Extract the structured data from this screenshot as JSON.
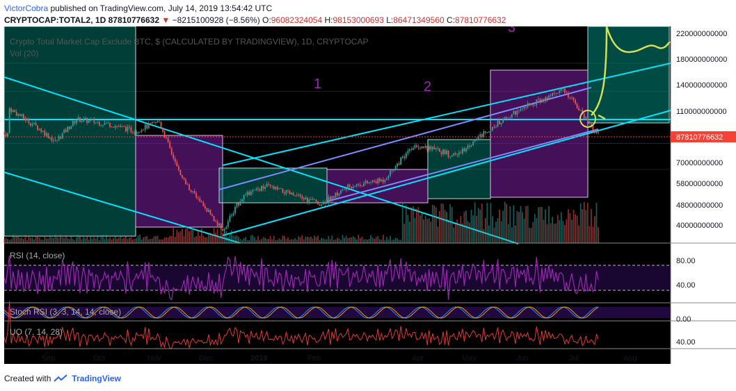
{
  "header": {
    "author": "VictorCobra",
    "published_text": "published on TradingView.com, July 14, 2019 13:54:42 UTC",
    "symbol": "CRYPTOCAP:TOTAL2, 1D",
    "last": "87810776632",
    "change": "−8215100928 (−8.56%)",
    "o_label": "O:",
    "o_value": "96082324054",
    "h_label": "H:",
    "h_value": "98153000693",
    "l_label": "L:",
    "l_value": "86471349560",
    "c_label": "C:",
    "c_value": "87810776632"
  },
  "chart_title": "Crypto Total Market Cap Exclude BTC, $ (CALCULATED BY TRADINGVIEW), 1D, CRYPTOCAP",
  "vol_label": "Vol (20)",
  "rsi_label": "RSI (14, close)",
  "stoch_label": "Stoch RSI (3, 3, 14, 14, close)",
  "uo_label": "UO (7, 14, 28)",
  "wave_labels": [
    "1",
    "2",
    "3"
  ],
  "price_axis": [
    "220000000000",
    "180000000000",
    "140000000000",
    "110000000000",
    "87810776632",
    "70000000000",
    "58000000000",
    "48000000000",
    "40000000000"
  ],
  "rsi_axis": [
    "80.00",
    "40.00"
  ],
  "stoch_axis": [
    "0.00"
  ],
  "uo_axis": [
    "40.00"
  ],
  "x_axis": [
    "Sep",
    "Oct",
    "Nov",
    "Dec",
    "2019",
    "Feb",
    "Apr",
    "May",
    "Jun",
    "Jul",
    "Aug"
  ],
  "footer": {
    "created_with": "Created with",
    "brand": "TradingView"
  },
  "colors": {
    "bg": "#000000",
    "up": "#26a69a",
    "down": "#ef5350",
    "price_label": "#f44336",
    "teal_box": "#00897b",
    "purple_box": "#7b1fa2",
    "channel": "#00e5ff",
    "rsi": "#9c27b0",
    "uo": "#e53935",
    "annot": "#d4e157"
  },
  "chart_data": {
    "type": "candlestick",
    "title": "Crypto Total Market Cap Exclude BTC, $ (CALCULATED BY TRADINGVIEW), 1D, CRYPTOCAP",
    "x_months": [
      "Sep",
      "Oct",
      "Nov",
      "Dec",
      "2019",
      "Feb",
      "Apr",
      "May",
      "Jun",
      "Jul",
      "Aug"
    ],
    "close_series_approx": [
      {
        "date": "2018-08-15",
        "close": 110000000000
      },
      {
        "date": "2018-09-01",
        "close": 92000000000
      },
      {
        "date": "2018-09-10",
        "close": 82000000000
      },
      {
        "date": "2018-09-22",
        "close": 100000000000
      },
      {
        "date": "2018-10-10",
        "close": 96000000000
      },
      {
        "date": "2018-10-25",
        "close": 90000000000
      },
      {
        "date": "2018-11-08",
        "close": 98000000000
      },
      {
        "date": "2018-11-20",
        "close": 60000000000
      },
      {
        "date": "2018-12-01",
        "close": 48000000000
      },
      {
        "date": "2018-12-14",
        "close": 37000000000
      },
      {
        "date": "2018-12-25",
        "close": 50000000000
      },
      {
        "date": "2019-01-08",
        "close": 55000000000
      },
      {
        "date": "2019-01-25",
        "close": 50000000000
      },
      {
        "date": "2019-02-08",
        "close": 47000000000
      },
      {
        "date": "2019-02-24",
        "close": 55000000000
      },
      {
        "date": "2019-03-15",
        "close": 58000000000
      },
      {
        "date": "2019-04-02",
        "close": 80000000000
      },
      {
        "date": "2019-04-25",
        "close": 72000000000
      },
      {
        "date": "2019-05-14",
        "close": 92000000000
      },
      {
        "date": "2019-06-01",
        "close": 110000000000
      },
      {
        "date": "2019-06-26",
        "close": 130000000000
      },
      {
        "date": "2019-07-14",
        "close": 87810776632
      }
    ],
    "last_close": 87810776632,
    "price_axis_ticks": [
      220000000000,
      180000000000,
      140000000000,
      110000000000,
      70000000000,
      58000000000,
      48000000000,
      40000000000
    ],
    "rsi": {
      "name": "RSI (14, close)",
      "levels": [
        80,
        40
      ]
    },
    "stoch_rsi": {
      "name": "Stoch RSI (3, 3, 14, 14, close)"
    },
    "uo": {
      "name": "UO (7, 14, 28)"
    },
    "grid": true
  }
}
